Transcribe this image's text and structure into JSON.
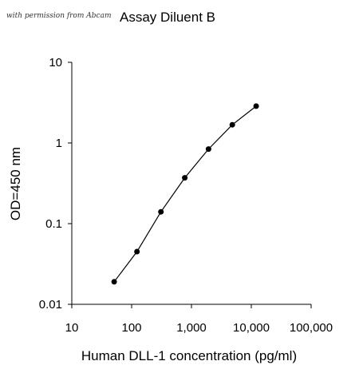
{
  "watermark": "with permission from Abcam",
  "chart_data": {
    "type": "line",
    "title": "Assay Diluent B",
    "xlabel": "Human DLL-1 concentration (pg/ml)",
    "ylabel": "OD=450 nm",
    "x_scale": "log",
    "y_scale": "log",
    "xlim": [
      10,
      100000
    ],
    "ylim": [
      0.01,
      10
    ],
    "x_ticks": [
      10,
      100,
      1000,
      10000,
      100000
    ],
    "x_tick_labels": [
      "10",
      "100",
      "1,000",
      "10,000",
      "100,000"
    ],
    "y_ticks": [
      0.01,
      0.1,
      1,
      10
    ],
    "y_tick_labels": [
      "0.01",
      "0.1",
      "1",
      "10"
    ],
    "grid": false,
    "legend": "none",
    "marker": "filled-circle",
    "line_color": "#000000",
    "series": [
      {
        "x": [
          51,
          123,
          309,
          772,
          1929,
          4822,
          12055
        ],
        "y": [
          0.019,
          0.045,
          0.14,
          0.37,
          0.84,
          1.68,
          2.86
        ]
      }
    ]
  }
}
